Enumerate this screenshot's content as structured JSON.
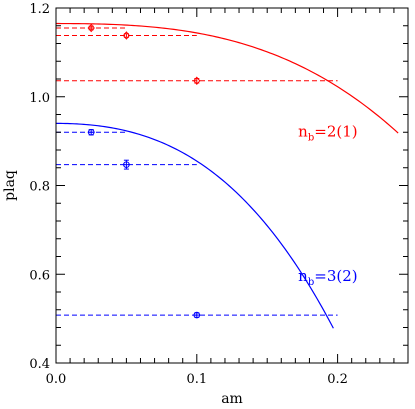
{
  "chart_data": {
    "type": "scatter",
    "title": "",
    "xlabel": "am",
    "ylabel": "plaq",
    "xlim": [
      0.0,
      0.25
    ],
    "ylim": [
      0.4,
      1.2
    ],
    "x_ticks": [
      {
        "value": 0.0,
        "label": "0.0"
      },
      {
        "value": 0.1,
        "label": "0.1"
      },
      {
        "value": 0.2,
        "label": "0.2"
      }
    ],
    "y_ticks": [
      {
        "value": 0.4,
        "label": "0.4"
      },
      {
        "value": 0.6,
        "label": "0.6"
      },
      {
        "value": 0.8,
        "label": "0.8"
      },
      {
        "value": 1.0,
        "label": "1.0"
      },
      {
        "value": 1.2,
        "label": "1.2"
      }
    ],
    "grid": false,
    "series": [
      {
        "color": "#ff0000",
        "marker": "diamond",
        "annotation": {
          "main": "n",
          "sub": "b",
          "rest": "=2(1)",
          "x": 0.172,
          "y": 0.91
        },
        "points": [
          {
            "x": 0.025,
            "y": 1.155,
            "yerr": 0.004
          },
          {
            "x": 0.05,
            "y": 1.138,
            "yerr": 0.004
          },
          {
            "x": 0.1,
            "y": 1.036,
            "yerr": 0.005
          }
        ],
        "hlines": [
          {
            "y": 1.155,
            "x0": 0.0,
            "x1": 0.05
          },
          {
            "y": 1.138,
            "x0": 0.0,
            "x1": 0.1
          },
          {
            "y": 1.036,
            "x0": 0.0,
            "x1": 0.2
          }
        ],
        "curve": {
          "y0": 1.165,
          "a": -0.68,
          "b": -14.4,
          "xmax": 0.243
        }
      },
      {
        "color": "#0000ff",
        "marker": "circle-cross",
        "annotation": {
          "main": "n",
          "sub": "b",
          "rest": "=3(2)",
          "x": 0.172,
          "y": 0.585
        },
        "points": [
          {
            "x": 0.025,
            "y": 0.92,
            "yerr": 0.006
          },
          {
            "x": 0.05,
            "y": 0.847,
            "yerr": 0.01
          },
          {
            "x": 0.1,
            "y": 0.508,
            "yerr": 0.005
          }
        ],
        "hlines": [
          {
            "y": 0.92,
            "x0": 0.0,
            "x1": 0.05
          },
          {
            "y": 0.847,
            "x0": 0.0,
            "x1": 0.1
          },
          {
            "y": 0.508,
            "x0": 0.0,
            "x1": 0.2
          }
        ],
        "curve": {
          "y0": 0.94,
          "a": -5.0,
          "b": -35.0,
          "xmax": 0.197
        }
      }
    ]
  }
}
